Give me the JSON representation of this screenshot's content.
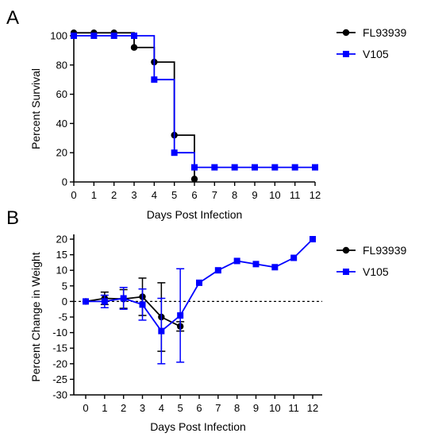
{
  "chart_data": [
    {
      "panel": "A",
      "type": "line",
      "step": true,
      "xlabel": "Days Post Infection",
      "ylabel": "Percent Survival",
      "xlim": [
        0,
        12
      ],
      "ylim": [
        0,
        100
      ],
      "xticks": [
        0,
        1,
        2,
        3,
        4,
        5,
        6,
        7,
        8,
        9,
        10,
        11,
        12
      ],
      "yticks": [
        0,
        20,
        40,
        60,
        80,
        100
      ],
      "legend_position": "top-right",
      "series": [
        {
          "name": "FL93939",
          "color": "#000000",
          "marker": "circle",
          "x": [
            0,
            1,
            2,
            3,
            4,
            5,
            6
          ],
          "y": [
            102,
            102,
            102,
            92,
            82,
            32,
            2
          ]
        },
        {
          "name": "V105",
          "color": "#0000ff",
          "marker": "square",
          "x": [
            0,
            1,
            2,
            3,
            4,
            5,
            6,
            7,
            8,
            9,
            10,
            11,
            12
          ],
          "y": [
            100,
            100,
            100,
            100,
            70,
            20,
            10,
            10,
            10,
            10,
            10,
            10,
            10
          ]
        }
      ]
    },
    {
      "panel": "B",
      "type": "line",
      "xlabel": "Days Post Infection",
      "ylabel": "Percent Change in Weight",
      "xlim": [
        0,
        12
      ],
      "ylim": [
        -30,
        20
      ],
      "xticks": [
        0,
        1,
        2,
        3,
        4,
        5,
        6,
        7,
        8,
        9,
        10,
        11,
        12
      ],
      "yticks": [
        -30,
        -25,
        -20,
        -15,
        -10,
        -5,
        0,
        5,
        10,
        15,
        20
      ],
      "reference_line": 0,
      "legend_position": "top-right",
      "series": [
        {
          "name": "FL93939",
          "color": "#000000",
          "marker": "circle",
          "x": [
            0,
            1,
            2,
            3,
            4,
            5
          ],
          "y": [
            0,
            1,
            0.8,
            1.5,
            -5,
            -8
          ],
          "error": [
            0,
            2,
            3,
            6,
            11,
            1.5
          ]
        },
        {
          "name": "V105",
          "color": "#0000ff",
          "marker": "square",
          "x": [
            0,
            1,
            2,
            3,
            4,
            5,
            6,
            7,
            8,
            9,
            10,
            11,
            12
          ],
          "y": [
            0,
            0,
            1,
            -1,
            -9.5,
            -4.5,
            6,
            10,
            13,
            12,
            11,
            14,
            20
          ],
          "error": [
            0,
            2,
            3.5,
            5,
            10.5,
            15,
            0,
            0,
            0,
            0,
            0,
            0,
            0
          ]
        }
      ]
    }
  ]
}
